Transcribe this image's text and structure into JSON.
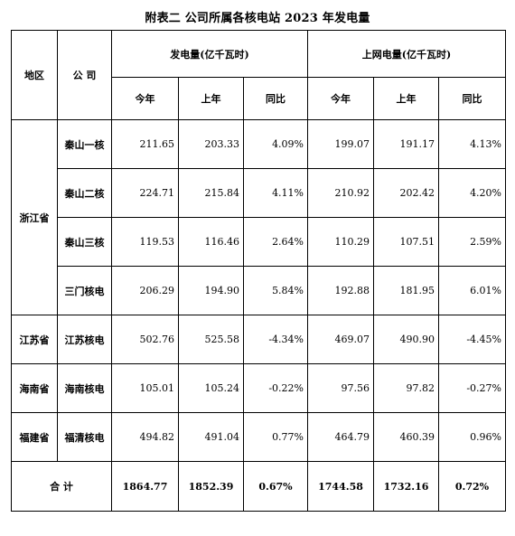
{
  "title": "附表二 公司所属各核电站 2023 年发电量",
  "headers": {
    "region": "地区",
    "company": "公 司",
    "generation": "发电量(亿千瓦时)",
    "grid": "上网电量(亿千瓦时)",
    "this_year": "今年",
    "last_year": "上年",
    "yoy": "同比"
  },
  "regions": {
    "zhejiang": "浙江省",
    "jiangsu": "江苏省",
    "hainan": "海南省",
    "fujian": "福建省"
  },
  "rows": [
    {
      "company": "秦山一核",
      "gen_this": "211.65",
      "gen_last": "203.33",
      "gen_yoy": "4.09%",
      "grid_this": "199.07",
      "grid_last": "191.17",
      "grid_yoy": "4.13%"
    },
    {
      "company": "秦山二核",
      "gen_this": "224.71",
      "gen_last": "215.84",
      "gen_yoy": "4.11%",
      "grid_this": "210.92",
      "grid_last": "202.42",
      "grid_yoy": "4.20%"
    },
    {
      "company": "秦山三核",
      "gen_this": "119.53",
      "gen_last": "116.46",
      "gen_yoy": "2.64%",
      "grid_this": "110.29",
      "grid_last": "107.51",
      "grid_yoy": "2.59%"
    },
    {
      "company": "三门核电",
      "gen_this": "206.29",
      "gen_last": "194.90",
      "gen_yoy": "5.84%",
      "grid_this": "192.88",
      "grid_last": "181.95",
      "grid_yoy": "6.01%"
    },
    {
      "company": "江苏核电",
      "gen_this": "502.76",
      "gen_last": "525.58",
      "gen_yoy": "-4.34%",
      "grid_this": "469.07",
      "grid_last": "490.90",
      "grid_yoy": "-4.45%"
    },
    {
      "company": "海南核电",
      "gen_this": "105.01",
      "gen_last": "105.24",
      "gen_yoy": "-0.22%",
      "grid_this": "97.56",
      "grid_last": "97.82",
      "grid_yoy": "-0.27%"
    },
    {
      "company": "福清核电",
      "gen_this": "494.82",
      "gen_last": "491.04",
      "gen_yoy": "0.77%",
      "grid_this": "464.79",
      "grid_last": "460.39",
      "grid_yoy": "0.96%"
    }
  ],
  "total": {
    "label": "合 计",
    "gen_this": "1864.77",
    "gen_last": "1852.39",
    "gen_yoy": "0.67%",
    "grid_this": "1744.58",
    "grid_last": "1732.16",
    "grid_yoy": "0.72%"
  }
}
